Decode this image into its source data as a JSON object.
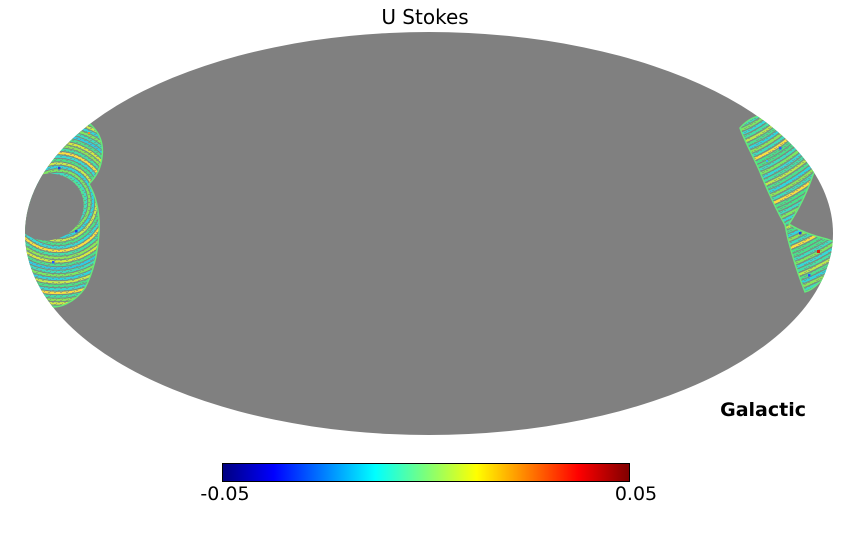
{
  "title": "U Stokes",
  "coordinate_label": "Galactic",
  "colorbar": {
    "min_label": "-0.05",
    "max_label": "0.05",
    "colormap": "jet",
    "stops": [
      "#000080",
      "#0000ff",
      "#0080ff",
      "#00ffff",
      "#7dff7a",
      "#ffff00",
      "#ff8000",
      "#ff0000",
      "#800000"
    ]
  },
  "map": {
    "projection": "mollweide",
    "unobserved_color": "#808080",
    "patch_base_color": "#52e291",
    "patch_rim_color": "#66ea7a",
    "ring_palette_left": [
      "#3edcc0",
      "#7fe85e",
      "#2fd4e0",
      "#cfe74a",
      "#49e189",
      "#38d8d8",
      "#ffda3f",
      "#43e0a8",
      "#8fe455",
      "#d8e83e",
      "#4ce08e",
      "#2fc8e8"
    ],
    "ring_palette_right": [
      "#49e189",
      "#3edcc0",
      "#7fe85e",
      "#36d8d8",
      "#43e0a8",
      "#bfe74a",
      "#4ce08e",
      "#2fd4e0",
      "#8fe455",
      "#3edcc0",
      "#ffda3f",
      "#49e189"
    ]
  },
  "chart_data": {
    "type": "heatmap",
    "title": "U Stokes",
    "projection": "mollweide",
    "coordinate_system": "Galactic",
    "colormap": "jet",
    "value_range": [
      -0.05,
      0.05
    ],
    "colorbar_ticks": [
      -0.05,
      0.05
    ],
    "background": "unobserved sky shown as uniform gray (#808080) ellipse",
    "observed_regions": [
      {
        "location": "left limb, mid-latitudes (x~25-105px, y~115-310px)",
        "shape": "swirl of concentric scan rings wrapping around a gray unobserved hole near the map edge",
        "approx_values": "mostly 0 to +0.02 (spring green / turquoise / cyan arcs) with yellow-green arcs near the bottom and a few blue outlier pixels"
      },
      {
        "location": "right limb, mid-latitudes (x~740-833px, y~115-295px)",
        "shape": "diagonal ribbon of scan rings narrowing to a waist then widening into a foot that touches the map edge",
        "approx_values": "mostly 0 to +0.015 (spring green / turquoise) with blue speckles and one red outlier near (818,251)"
      }
    ]
  }
}
